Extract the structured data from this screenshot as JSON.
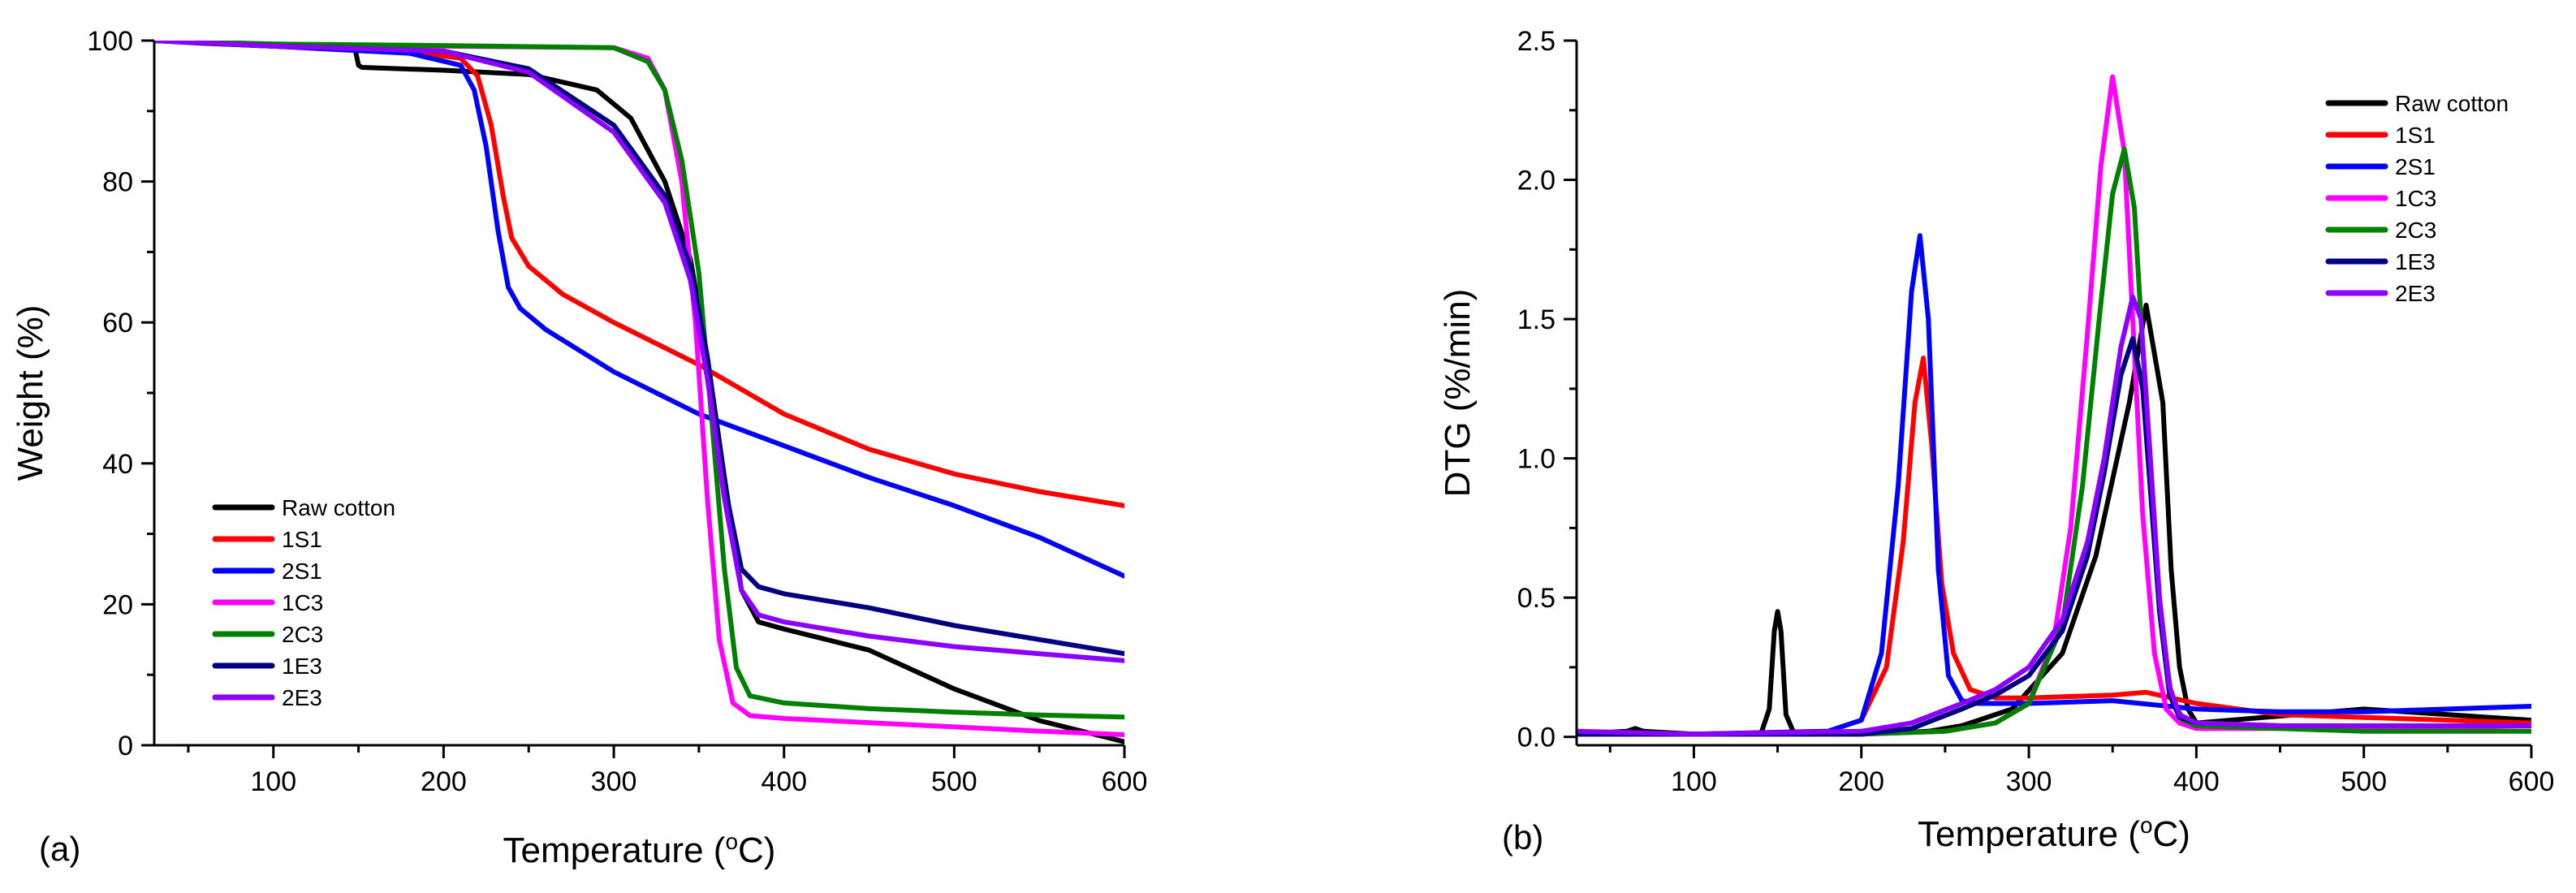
{
  "chart_data": [
    {
      "type": "line",
      "panel_label": "(a)",
      "xlabel": "Temperature",
      "xlabel_unit": "(°C)",
      "ylabel": "Weight (%)",
      "xlim": [
        30,
        600
      ],
      "ylim": [
        0,
        100
      ],
      "xticks": [
        100,
        200,
        300,
        400,
        500,
        600
      ],
      "yticks": [
        0,
        20,
        40,
        60,
        80,
        100
      ],
      "legend_position": "lower-left",
      "series": [
        {
          "name": "Raw cotton",
          "color": "#000000",
          "x": [
            30,
            60,
            100,
            148,
            150,
            152,
            200,
            250,
            290,
            310,
            330,
            345,
            355,
            365,
            375,
            385,
            400,
            450,
            500,
            550,
            600
          ],
          "y": [
            100,
            99.6,
            99.2,
            98.8,
            96.5,
            96.2,
            95.8,
            95.2,
            93,
            89,
            80,
            69,
            55,
            38,
            22,
            17.5,
            16.5,
            13.5,
            8,
            3.5,
            0.5
          ]
        },
        {
          "name": "1S1",
          "color": "#ff0000",
          "x": [
            30,
            100,
            180,
            210,
            220,
            228,
            235,
            240,
            250,
            270,
            300,
            350,
            400,
            450,
            500,
            550,
            600
          ],
          "y": [
            100,
            99.2,
            98.4,
            97.5,
            95,
            88,
            78,
            72,
            68,
            64,
            60,
            54,
            47,
            42,
            38.5,
            36,
            34
          ]
        },
        {
          "name": "2S1",
          "color": "#0000ff",
          "x": [
            30,
            100,
            180,
            210,
            218,
            225,
            232,
            238,
            245,
            260,
            300,
            350,
            400,
            450,
            500,
            550,
            600
          ],
          "y": [
            100,
            99.2,
            98.2,
            96.5,
            93,
            85,
            73,
            65,
            62,
            59,
            53,
            47,
            42.5,
            38,
            34,
            29.5,
            24
          ]
        },
        {
          "name": "1C3",
          "color": "#ff00ff",
          "x": [
            30,
            100,
            200,
            300,
            320,
            330,
            340,
            348,
            355,
            362,
            370,
            380,
            400,
            450,
            500,
            550,
            600
          ],
          "y": [
            100,
            99.5,
            99.2,
            99,
            97.5,
            93,
            80,
            60,
            35,
            15,
            6,
            4.2,
            3.8,
            3.2,
            2.6,
            2,
            1.5
          ]
        },
        {
          "name": "2C3",
          "color": "#008000",
          "x": [
            30,
            100,
            200,
            300,
            320,
            330,
            340,
            350,
            358,
            365,
            372,
            380,
            400,
            450,
            500,
            550,
            600
          ],
          "y": [
            100,
            99.5,
            99.3,
            99,
            97,
            93,
            83,
            67,
            45,
            25,
            11,
            7,
            6,
            5.2,
            4.7,
            4.3,
            4
          ]
        },
        {
          "name": "1E3",
          "color": "#000080",
          "x": [
            30,
            100,
            200,
            250,
            300,
            330,
            345,
            355,
            365,
            375,
            385,
            400,
            450,
            500,
            550,
            600
          ],
          "y": [
            100,
            99.2,
            98.5,
            96,
            88,
            78,
            68,
            55,
            37,
            25,
            22.5,
            21.5,
            19.5,
            17,
            15,
            13
          ]
        },
        {
          "name": "2E3",
          "color": "#8b00ff",
          "x": [
            30,
            100,
            200,
            250,
            300,
            330,
            345,
            355,
            365,
            375,
            385,
            400,
            450,
            500,
            550,
            600
          ],
          "y": [
            100,
            99.2,
            98.5,
            95.5,
            87,
            77,
            66,
            52,
            35,
            22,
            18.5,
            17.5,
            15.5,
            14,
            13,
            12
          ]
        }
      ]
    },
    {
      "type": "line",
      "panel_label": "(b)",
      "xlabel": "Temperature",
      "xlabel_unit": "(°C)",
      "ylabel": "DTG (%/min)",
      "xlim": [
        30,
        600
      ],
      "ylim": [
        -0.03,
        2.5
      ],
      "xticks": [
        100,
        200,
        300,
        400,
        500,
        600
      ],
      "yticks": [
        0.0,
        0.5,
        1.0,
        1.5,
        2.0,
        2.5
      ],
      "ytick_labels": [
        "0.0",
        "0.5",
        "1.0",
        "1.5",
        "2.0",
        "2.5"
      ],
      "legend_position": "top-right",
      "series": [
        {
          "name": "Raw cotton",
          "color": "#000000",
          "x": [
            30,
            60,
            65,
            70,
            100,
            140,
            145,
            148,
            150,
            152,
            155,
            160,
            200,
            240,
            260,
            290,
            320,
            340,
            360,
            370,
            380,
            385,
            390,
            395,
            400,
            500,
            600
          ],
          "y": [
            0.01,
            0.02,
            0.03,
            0.02,
            0.01,
            0.01,
            0.1,
            0.38,
            0.45,
            0.38,
            0.08,
            0.01,
            0.01,
            0.02,
            0.04,
            0.1,
            0.3,
            0.65,
            1.2,
            1.55,
            1.2,
            0.6,
            0.25,
            0.1,
            0.05,
            0.1,
            0.06
          ]
        },
        {
          "name": "1S1",
          "color": "#ff0000",
          "x": [
            30,
            100,
            180,
            200,
            215,
            225,
            232,
            237,
            242,
            248,
            255,
            265,
            280,
            300,
            350,
            370,
            400,
            450,
            500,
            600
          ],
          "y": [
            0.01,
            0.01,
            0.02,
            0.06,
            0.25,
            0.7,
            1.2,
            1.36,
            1.05,
            0.55,
            0.3,
            0.17,
            0.14,
            0.14,
            0.15,
            0.16,
            0.12,
            0.08,
            0.07,
            0.05
          ]
        },
        {
          "name": "2S1",
          "color": "#0000ff",
          "x": [
            30,
            100,
            180,
            200,
            212,
            222,
            230,
            235,
            240,
            246,
            252,
            260,
            270,
            300,
            350,
            400,
            450,
            500,
            600
          ],
          "y": [
            0.01,
            0.01,
            0.02,
            0.06,
            0.3,
            0.9,
            1.6,
            1.8,
            1.5,
            0.6,
            0.22,
            0.13,
            0.12,
            0.12,
            0.13,
            0.1,
            0.09,
            0.09,
            0.11
          ]
        },
        {
          "name": "1C3",
          "color": "#ff00ff",
          "x": [
            30,
            100,
            200,
            250,
            280,
            300,
            315,
            325,
            335,
            343,
            350,
            357,
            362,
            368,
            375,
            382,
            390,
            400,
            500,
            600
          ],
          "y": [
            0.01,
            0.01,
            0.01,
            0.02,
            0.05,
            0.12,
            0.35,
            0.75,
            1.45,
            2.05,
            2.37,
            2.1,
            1.5,
            0.8,
            0.3,
            0.1,
            0.05,
            0.03,
            0.03,
            0.02
          ]
        },
        {
          "name": "2C3",
          "color": "#008000",
          "x": [
            30,
            100,
            200,
            250,
            280,
            300,
            320,
            332,
            342,
            350,
            357,
            363,
            368,
            373,
            378,
            385,
            392,
            400,
            500,
            600
          ],
          "y": [
            0.01,
            0.01,
            0.01,
            0.02,
            0.05,
            0.12,
            0.4,
            0.9,
            1.5,
            1.95,
            2.11,
            1.9,
            1.4,
            0.9,
            0.45,
            0.15,
            0.06,
            0.04,
            0.02,
            0.02
          ]
        },
        {
          "name": "1E3",
          "color": "#000080",
          "x": [
            30,
            100,
            200,
            230,
            260,
            280,
            300,
            320,
            335,
            345,
            355,
            362,
            368,
            373,
            378,
            384,
            390,
            400,
            450,
            500,
            600
          ],
          "y": [
            0.01,
            0.01,
            0.01,
            0.03,
            0.1,
            0.15,
            0.22,
            0.38,
            0.65,
            0.95,
            1.3,
            1.43,
            1.25,
            0.85,
            0.45,
            0.15,
            0.07,
            0.05,
            0.04,
            0.04,
            0.04
          ]
        },
        {
          "name": "2E3",
          "color": "#8b00ff",
          "x": [
            30,
            100,
            200,
            230,
            260,
            280,
            300,
            320,
            335,
            345,
            355,
            362,
            367,
            372,
            378,
            384,
            390,
            400,
            450,
            500,
            600
          ],
          "y": [
            0.02,
            0.01,
            0.02,
            0.05,
            0.12,
            0.17,
            0.25,
            0.42,
            0.7,
            1.0,
            1.4,
            1.58,
            1.5,
            1.05,
            0.5,
            0.18,
            0.08,
            0.05,
            0.04,
            0.04,
            0.04
          ]
        }
      ]
    }
  ]
}
